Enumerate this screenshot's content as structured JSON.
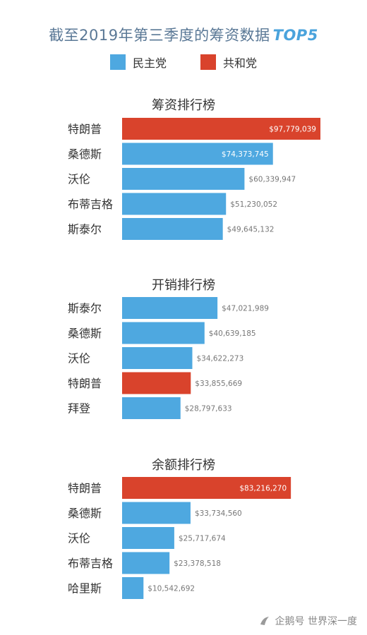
{
  "title": {
    "main": "截至2019年第三季度的筹资数据",
    "tag": "TOP5"
  },
  "legend": {
    "items": [
      {
        "label": "民主党",
        "color": "#4ea8e0"
      },
      {
        "label": "共和党",
        "color": "#d9432c"
      }
    ]
  },
  "colors": {
    "dem": "#4ea8e0",
    "rep": "#d9432c",
    "value_text": "#777777",
    "label_text": "#333333"
  },
  "footer": {
    "icon": "penguin-icon",
    "text": "企鹅号 世界深一度"
  },
  "chart_data": [
    {
      "type": "bar",
      "orientation": "horizontal",
      "title": "筹资排行榜",
      "categories": [
        "特朗普",
        "桑德斯",
        "沃伦",
        "布蒂吉格",
        "斯泰尔"
      ],
      "values": [
        97779039,
        74373745,
        60339947,
        51230052,
        49645132
      ],
      "value_labels": [
        "$97,779,039",
        "$74,373,745",
        "$60,339,947",
        "$51,230,052",
        "$49,645,132"
      ],
      "party": [
        "rep",
        "dem",
        "dem",
        "dem",
        "dem"
      ],
      "xlim": [
        0,
        97779039
      ]
    },
    {
      "type": "bar",
      "orientation": "horizontal",
      "title": "开销排行榜",
      "categories": [
        "斯泰尔",
        "桑德斯",
        "沃伦",
        "特朗普",
        "拜登"
      ],
      "values": [
        47021989,
        40639185,
        34622273,
        33855669,
        28797633
      ],
      "value_labels": [
        "$47,021,989",
        "$40,639,185",
        "$34,622,273",
        "$33,855,669",
        "$28,797,633"
      ],
      "party": [
        "dem",
        "dem",
        "dem",
        "rep",
        "dem"
      ],
      "xlim": [
        0,
        97779039
      ]
    },
    {
      "type": "bar",
      "orientation": "horizontal",
      "title": "余额排行榜",
      "categories": [
        "特朗普",
        "桑德斯",
        "沃伦",
        "布蒂吉格",
        "哈里斯"
      ],
      "values": [
        83216270,
        33734560,
        25717674,
        23378518,
        10542692
      ],
      "value_labels": [
        "$83,216,270",
        "$33,734,560",
        "$25,717,674",
        "$23,378,518",
        "$10,542,692"
      ],
      "party": [
        "rep",
        "dem",
        "dem",
        "dem",
        "dem"
      ],
      "xlim": [
        0,
        97779039
      ]
    }
  ]
}
